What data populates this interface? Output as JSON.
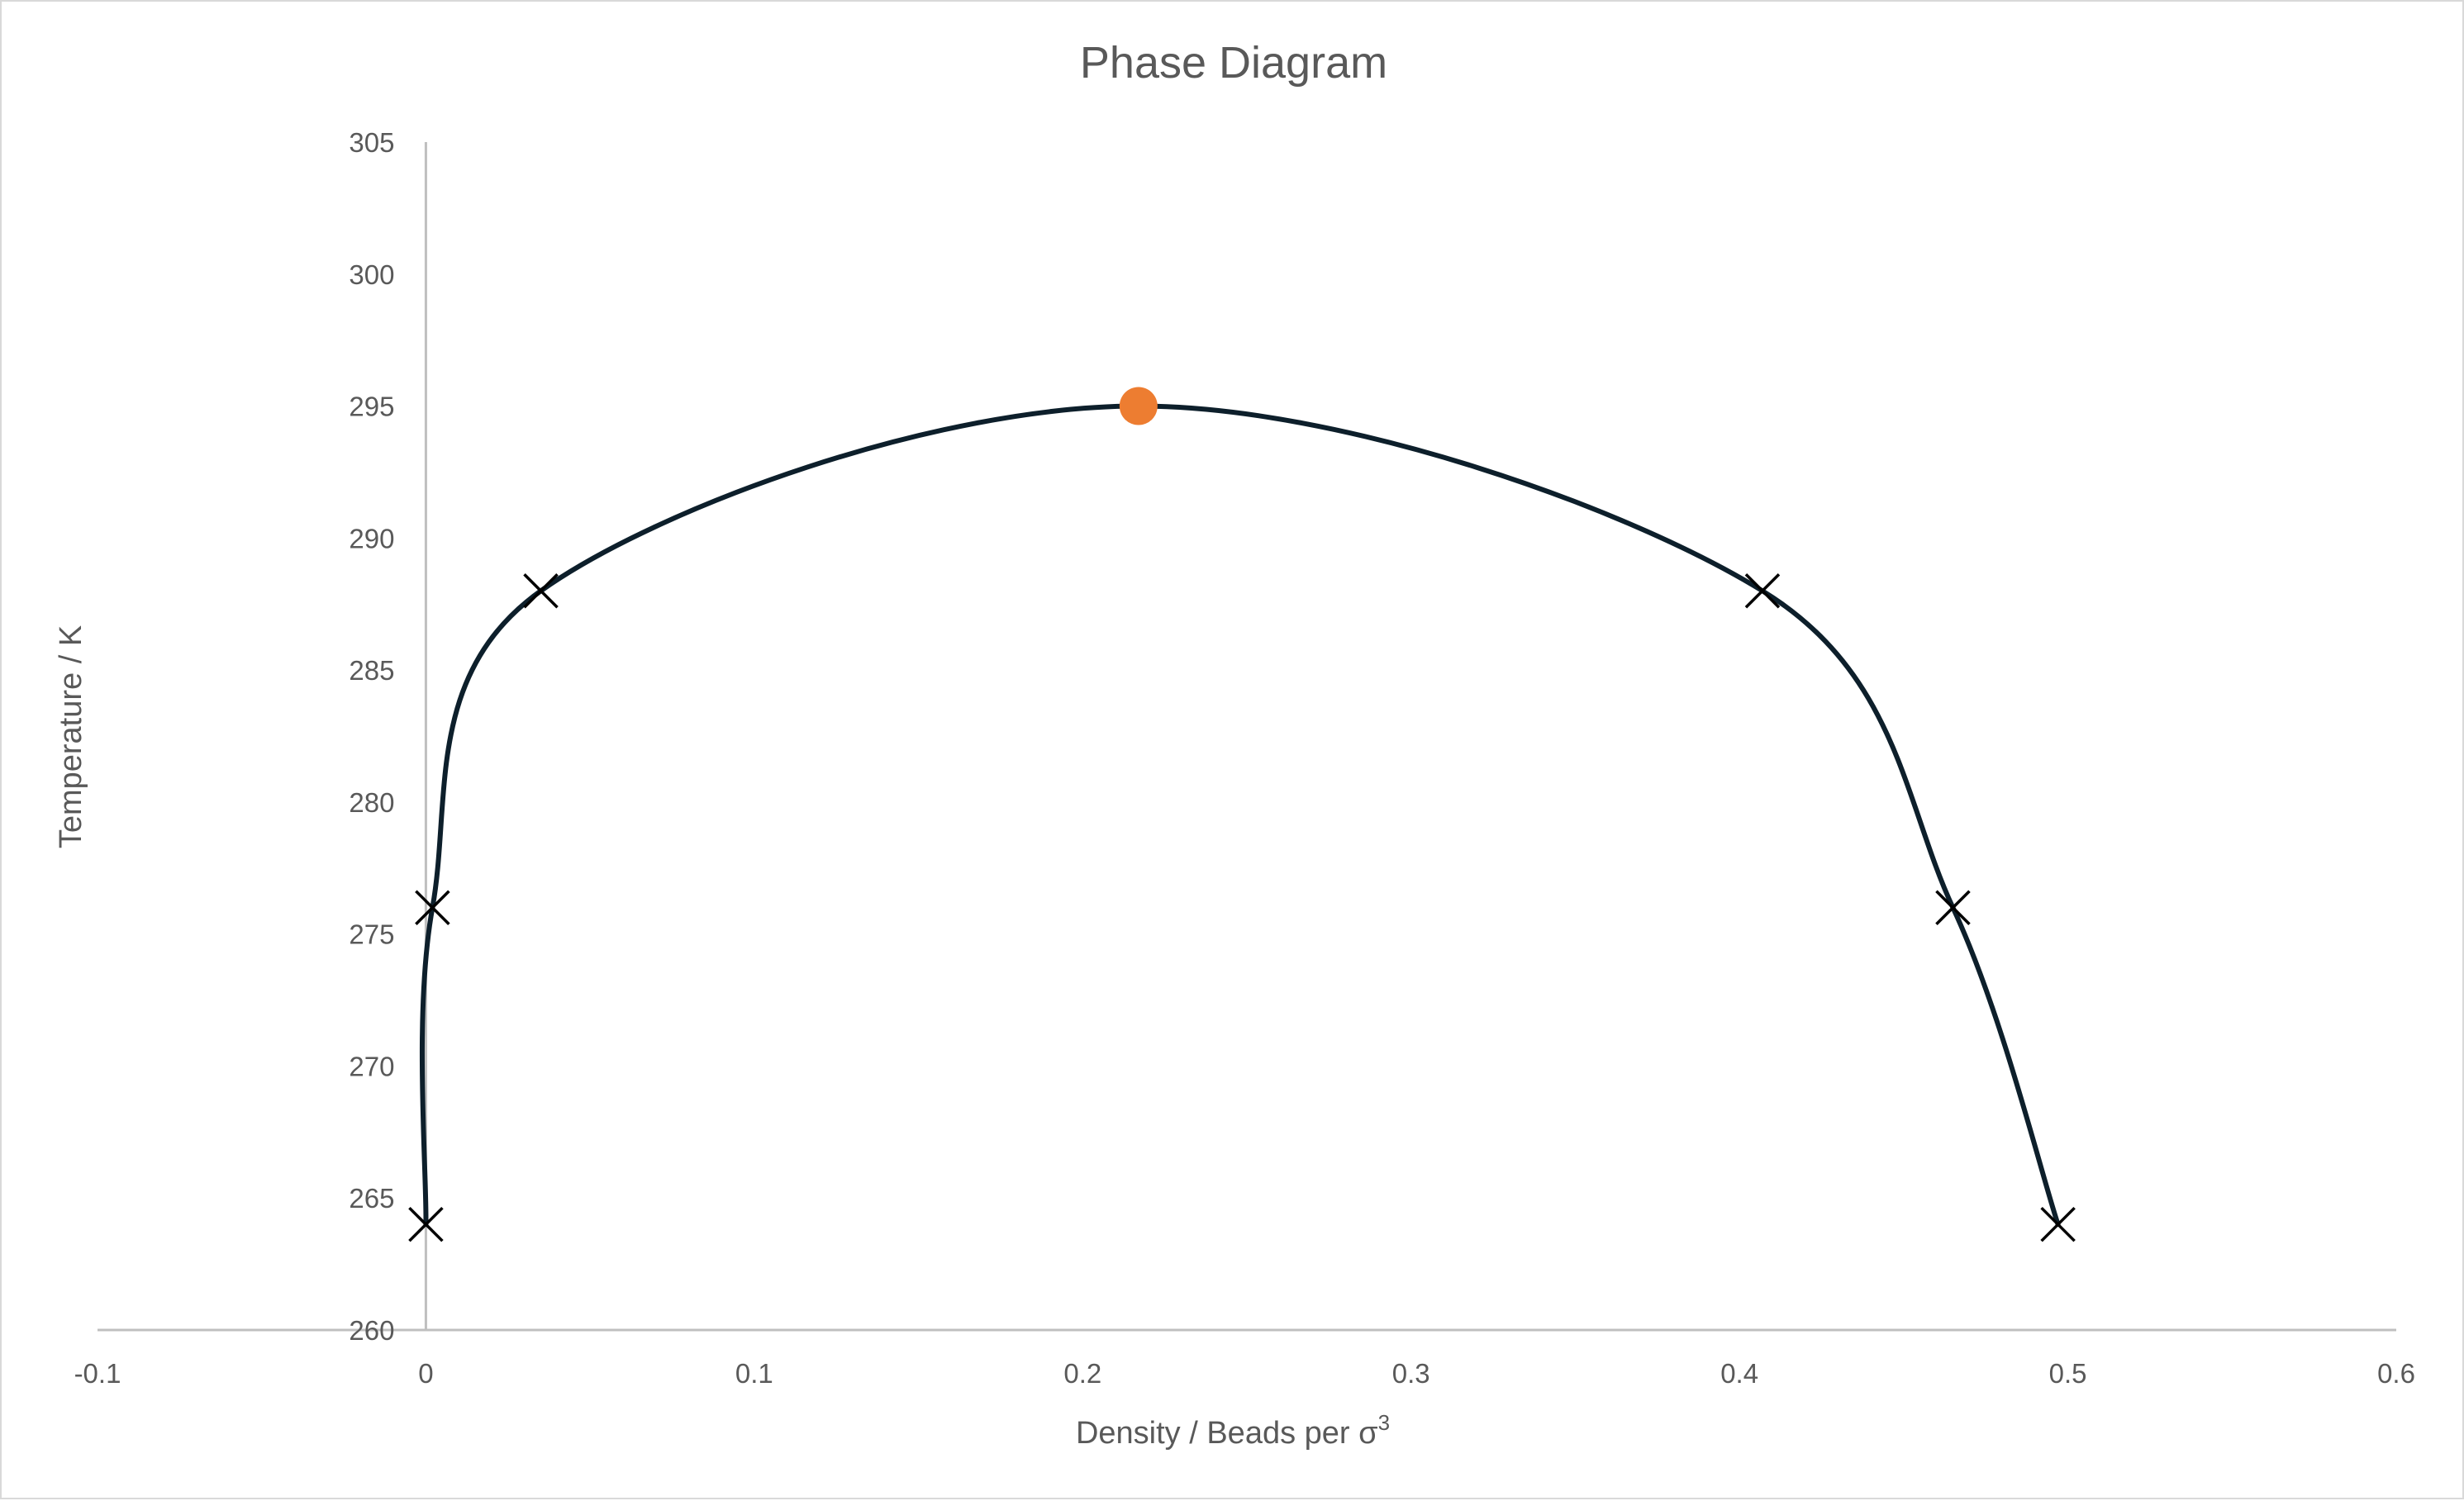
{
  "chart_data": {
    "type": "scatter",
    "title": "Phase Diagram",
    "xlabel_main": "Density / Beads per σ",
    "xlabel_sup": "3",
    "ylabel": "Temperature / K",
    "xlim": [
      -0.1,
      0.6
    ],
    "ylim": [
      260,
      305
    ],
    "x_ticks": [
      -0.1,
      0,
      0.1,
      0.2,
      0.3,
      0.4,
      0.5,
      0.6
    ],
    "x_tick_labels": [
      "-0.1",
      "0",
      "0.1",
      "0.2",
      "0.3",
      "0.4",
      "0.5",
      "0.6"
    ],
    "y_ticks": [
      260,
      265,
      270,
      275,
      280,
      285,
      290,
      295,
      300,
      305
    ],
    "y_tick_labels": [
      "260",
      "265",
      "270",
      "275",
      "280",
      "285",
      "290",
      "295",
      "300",
      "305"
    ],
    "grid": false,
    "series": [
      {
        "marker": "x",
        "color": "#000000",
        "line_color": "#0d1f2b",
        "points": [
          {
            "x": 0.0,
            "y": 264
          },
          {
            "x": 0.002,
            "y": 276
          },
          {
            "x": 0.035,
            "y": 288
          },
          {
            "x": 0.217,
            "y": 295
          },
          {
            "x": 0.407,
            "y": 288
          },
          {
            "x": 0.465,
            "y": 276
          },
          {
            "x": 0.497,
            "y": 264
          }
        ],
        "marked_indices": [
          0,
          1,
          2,
          4,
          5,
          6
        ]
      },
      {
        "marker": "circle",
        "color": "#ed7d31",
        "points": [
          {
            "x": 0.217,
            "y": 295
          }
        ]
      }
    ]
  }
}
